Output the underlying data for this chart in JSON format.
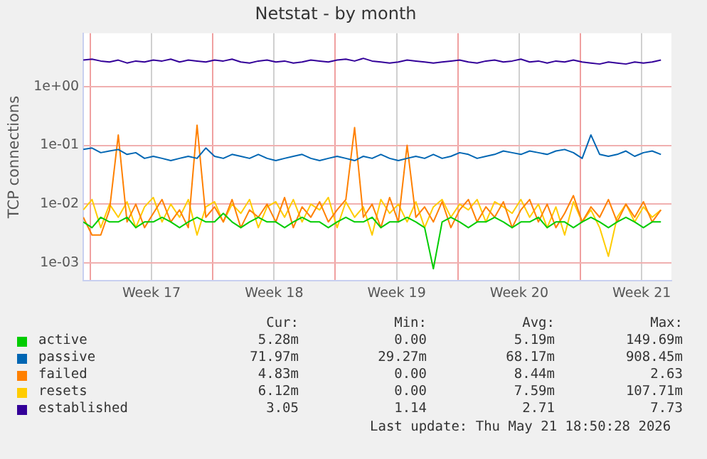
{
  "chart_data": {
    "type": "line",
    "title": "Netstat - by month",
    "ylabel": "TCP connections",
    "log": "y",
    "grid": true,
    "legend": "bottom left",
    "marker": "none",
    "line_style": "solid",
    "xlim": [
      "2026-04-19T14:24",
      "2026-05-23T04:48"
    ],
    "xticks": [
      {
        "value": "2026-04-20T00:00",
        "label": null
      },
      {
        "value": "2026-04-23T12:00",
        "label": "Week 17"
      },
      {
        "value": "2026-04-27T00:00",
        "label": null
      },
      {
        "value": "2026-04-30T12:00",
        "label": "Week 18"
      },
      {
        "value": "2026-05-04T00:00",
        "label": null
      },
      {
        "value": "2026-05-07T12:00",
        "label": "Week 19"
      },
      {
        "value": "2026-05-11T00:00",
        "label": null
      },
      {
        "value": "2026-05-14T12:00",
        "label": "Week 20"
      },
      {
        "value": "2026-05-18T00:00",
        "label": null
      },
      {
        "value": "2026-05-21T12:00",
        "label": "Week 21"
      }
    ],
    "ylim": [
      0.0005,
      8
    ],
    "yticks": [
      {
        "value": 0.001,
        "label": "1e-03"
      },
      {
        "value": 0.01,
        "label": "1e-02"
      },
      {
        "value": 0.1,
        "label": "1e-01"
      },
      {
        "value": 1,
        "label": "1e+00"
      }
    ],
    "x": [
      "2026-04-19T14:24",
      "2026-04-20T02:24",
      "2026-04-20T14:24",
      "2026-04-21T02:24",
      "2026-04-21T14:24",
      "2026-04-22T02:24",
      "2026-04-22T14:24",
      "2026-04-23T02:24",
      "2026-04-23T14:24",
      "2026-04-24T02:24",
      "2026-04-24T14:24",
      "2026-04-25T02:24",
      "2026-04-25T14:24",
      "2026-04-26T02:24",
      "2026-04-26T14:24",
      "2026-04-27T02:24",
      "2026-04-27T14:24",
      "2026-04-28T02:24",
      "2026-04-28T14:24",
      "2026-04-29T02:24",
      "2026-04-29T14:24",
      "2026-04-30T02:24",
      "2026-04-30T14:24",
      "2026-05-01T02:24",
      "2026-05-01T14:24",
      "2026-05-02T02:24",
      "2026-05-02T14:24",
      "2026-05-03T02:24",
      "2026-05-03T14:24",
      "2026-05-04T02:24",
      "2026-05-04T14:24",
      "2026-05-05T02:24",
      "2026-05-05T14:24",
      "2026-05-06T02:24",
      "2026-05-06T14:24",
      "2026-05-07T02:24",
      "2026-05-07T14:24",
      "2026-05-08T02:24",
      "2026-05-08T14:24",
      "2026-05-09T02:24",
      "2026-05-09T14:24",
      "2026-05-10T02:24",
      "2026-05-10T14:24",
      "2026-05-11T02:24",
      "2026-05-11T14:24",
      "2026-05-12T02:24",
      "2026-05-12T14:24",
      "2026-05-13T02:24",
      "2026-05-13T14:24",
      "2026-05-14T02:24",
      "2026-05-14T14:24",
      "2026-05-15T02:24",
      "2026-05-15T14:24",
      "2026-05-16T02:24",
      "2026-05-16T14:24",
      "2026-05-17T02:24",
      "2026-05-17T14:24",
      "2026-05-18T02:24",
      "2026-05-18T14:24",
      "2026-05-19T02:24",
      "2026-05-19T14:24",
      "2026-05-20T02:24",
      "2026-05-20T14:24",
      "2026-05-21T02:24",
      "2026-05-21T14:24",
      "2026-05-22T02:24",
      "2026-05-22T14:24"
    ],
    "series": [
      {
        "name": "active",
        "color": "#00cc00",
        "values": [
          0.005,
          0.004,
          0.006,
          0.005,
          0.005,
          0.006,
          0.004,
          0.005,
          0.005,
          0.006,
          0.005,
          0.004,
          0.005,
          0.006,
          0.005,
          0.005,
          0.007,
          0.005,
          0.004,
          0.005,
          0.006,
          0.005,
          0.005,
          0.004,
          0.005,
          0.006,
          0.005,
          0.005,
          0.004,
          0.005,
          0.006,
          0.005,
          0.005,
          0.006,
          0.004,
          0.005,
          0.005,
          0.006,
          0.005,
          0.004,
          0.0008,
          0.005,
          0.006,
          0.005,
          0.004,
          0.005,
          0.005,
          0.006,
          0.005,
          0.004,
          0.005,
          0.005,
          0.006,
          0.004,
          0.005,
          0.005,
          0.004,
          0.005,
          0.006,
          0.005,
          0.004,
          0.005,
          0.006,
          0.005,
          0.004,
          0.005,
          0.005
        ]
      },
      {
        "name": "passive",
        "color": "#0066b3",
        "values": [
          0.085,
          0.09,
          0.075,
          0.08,
          0.085,
          0.07,
          0.075,
          0.06,
          0.065,
          0.06,
          0.055,
          0.06,
          0.065,
          0.06,
          0.09,
          0.065,
          0.06,
          0.07,
          0.065,
          0.06,
          0.07,
          0.06,
          0.055,
          0.06,
          0.065,
          0.07,
          0.06,
          0.055,
          0.06,
          0.065,
          0.06,
          0.055,
          0.065,
          0.06,
          0.07,
          0.06,
          0.055,
          0.06,
          0.065,
          0.06,
          0.07,
          0.06,
          0.065,
          0.075,
          0.07,
          0.06,
          0.065,
          0.07,
          0.08,
          0.075,
          0.07,
          0.08,
          0.075,
          0.07,
          0.08,
          0.085,
          0.075,
          0.06,
          0.15,
          0.07,
          0.065,
          0.07,
          0.08,
          0.065,
          0.075,
          0.08,
          0.07
        ]
      },
      {
        "name": "failed",
        "color": "#ff8000",
        "values": [
          0.006,
          0.003,
          0.003,
          0.008,
          0.15,
          0.005,
          0.01,
          0.004,
          0.007,
          0.012,
          0.005,
          0.008,
          0.004,
          0.22,
          0.006,
          0.009,
          0.005,
          0.012,
          0.004,
          0.008,
          0.006,
          0.01,
          0.005,
          0.013,
          0.004,
          0.009,
          0.006,
          0.011,
          0.005,
          0.008,
          0.012,
          0.2,
          0.006,
          0.01,
          0.004,
          0.013,
          0.005,
          0.1,
          0.006,
          0.009,
          0.005,
          0.011,
          0.004,
          0.008,
          0.012,
          0.005,
          0.009,
          0.006,
          0.011,
          0.004,
          0.008,
          0.012,
          0.005,
          0.01,
          0.004,
          0.007,
          0.014,
          0.005,
          0.009,
          0.006,
          0.012,
          0.005,
          0.01,
          0.006,
          0.011,
          0.005,
          0.008
        ]
      },
      {
        "name": "resets",
        "color": "#ffcc00",
        "values": [
          0.008,
          0.012,
          0.004,
          0.01,
          0.006,
          0.011,
          0.004,
          0.009,
          0.013,
          0.005,
          0.01,
          0.006,
          0.012,
          0.003,
          0.009,
          0.011,
          0.005,
          0.01,
          0.007,
          0.012,
          0.004,
          0.009,
          0.011,
          0.006,
          0.012,
          0.005,
          0.01,
          0.008,
          0.013,
          0.004,
          0.011,
          0.006,
          0.009,
          0.003,
          0.012,
          0.007,
          0.01,
          0.005,
          0.011,
          0.004,
          0.009,
          0.012,
          0.006,
          0.01,
          0.008,
          0.012,
          0.005,
          0.011,
          0.009,
          0.007,
          0.012,
          0.006,
          0.01,
          0.004,
          0.009,
          0.003,
          0.011,
          0.005,
          0.008,
          0.004,
          0.0013,
          0.006,
          0.01,
          0.005,
          0.009,
          0.006,
          0.008
        ]
      },
      {
        "name": "established",
        "color": "#330099",
        "values": [
          2.8,
          2.9,
          2.7,
          2.6,
          2.8,
          2.5,
          2.7,
          2.6,
          2.8,
          2.7,
          2.9,
          2.6,
          2.8,
          2.7,
          2.6,
          2.8,
          2.7,
          2.9,
          2.6,
          2.5,
          2.7,
          2.8,
          2.6,
          2.7,
          2.5,
          2.6,
          2.8,
          2.7,
          2.6,
          2.8,
          2.9,
          2.7,
          3.0,
          2.7,
          2.6,
          2.5,
          2.6,
          2.8,
          2.7,
          2.6,
          2.5,
          2.6,
          2.7,
          2.8,
          2.6,
          2.5,
          2.7,
          2.8,
          2.6,
          2.7,
          2.9,
          2.6,
          2.7,
          2.5,
          2.7,
          2.6,
          2.8,
          2.6,
          2.5,
          2.4,
          2.6,
          2.5,
          2.4,
          2.6,
          2.5,
          2.6,
          2.8
        ]
      }
    ],
    "annotations": [
      "Cur:",
      "Min:",
      "Avg:",
      "Max:",
      "5.28m",
      "0.00",
      "5.19m",
      "149.69m",
      "71.97m",
      "29.27m",
      "68.17m",
      "908.45m",
      "4.83m",
      "0.00",
      "8.44m",
      "2.63",
      "6.12m",
      "0.00",
      "7.59m",
      "107.71m",
      "3.05",
      "1.14",
      "2.71",
      "7.73",
      "Last update: Thu May 21 18:50:28 2026"
    ]
  }
}
